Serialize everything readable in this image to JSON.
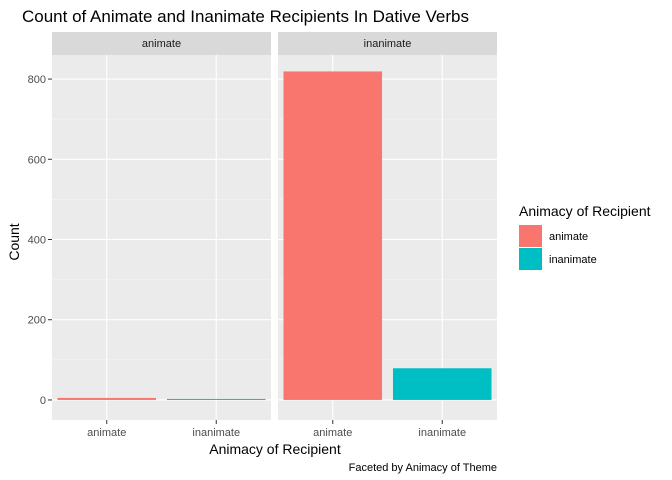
{
  "chart_data": {
    "type": "bar",
    "title": "Count of Animate and Inanimate Recipients In Dative Verbs",
    "xlabel": "Animacy of Recipient",
    "ylabel": "Count",
    "caption": "Faceted by Animacy of Theme",
    "ylim": [
      -50,
      860
    ],
    "yticks": [
      0,
      200,
      400,
      600,
      800
    ],
    "categories": [
      "animate",
      "inanimate"
    ],
    "legend": {
      "title": "Animacy of Recipient",
      "position": "right",
      "entries": [
        "animate",
        "inanimate"
      ]
    },
    "colors": {
      "animate": "#F8766D",
      "inanimate": "#00BFC4"
    },
    "panel_background": "#EBEBEB",
    "strip_background": "#D9D9D9",
    "grid": true,
    "facets": [
      {
        "label": "animate",
        "values": [
          5,
          2
        ]
      },
      {
        "label": "inanimate",
        "values": [
          819,
          79
        ]
      }
    ]
  }
}
